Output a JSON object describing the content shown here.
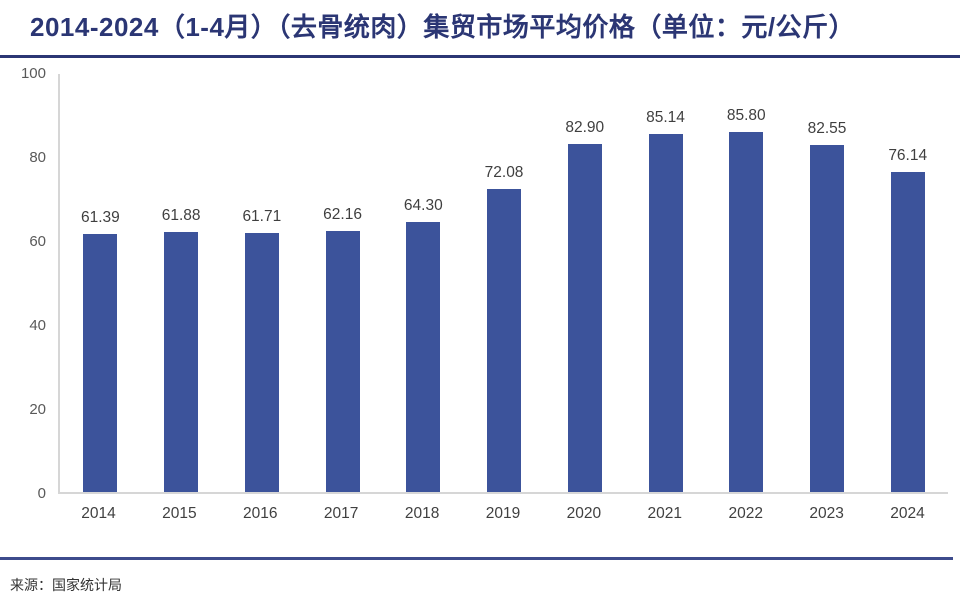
{
  "header": {
    "title": "2014-2024（1-4月）（去骨统肉）集贸市场平均价格（单位：元/公斤）"
  },
  "chart_data": {
    "type": "bar",
    "title": "2014-2024（1-4月）（去骨统肉）集贸市场平均价格",
    "unit": "元/公斤",
    "categories": [
      "2014",
      "2015",
      "2016",
      "2017",
      "2018",
      "2019",
      "2020",
      "2021",
      "2022",
      "2023",
      "2024"
    ],
    "values": [
      61.39,
      61.88,
      61.71,
      62.16,
      64.3,
      72.08,
      82.9,
      85.14,
      85.8,
      82.55,
      76.14
    ],
    "value_labels": [
      "61.39",
      "61.88",
      "61.71",
      "62.16",
      "64.30",
      "72.08",
      "82.90",
      "85.14",
      "85.80",
      "82.55",
      "76.14"
    ],
    "xlabel": "",
    "ylabel": "",
    "ylim": [
      0,
      100
    ],
    "yticks": [
      0,
      20,
      40,
      60,
      80,
      100
    ],
    "grid": false,
    "legend": "none",
    "bar_color": "#3c539b"
  },
  "footer": {
    "source": "来源：国家统计局"
  },
  "colors": {
    "accent_navy": "#2b3674",
    "bar": "#3c539b",
    "axis_line": "#d6d6d6",
    "value_label_text": "#3f3f3f",
    "tick_text": "#595959"
  }
}
